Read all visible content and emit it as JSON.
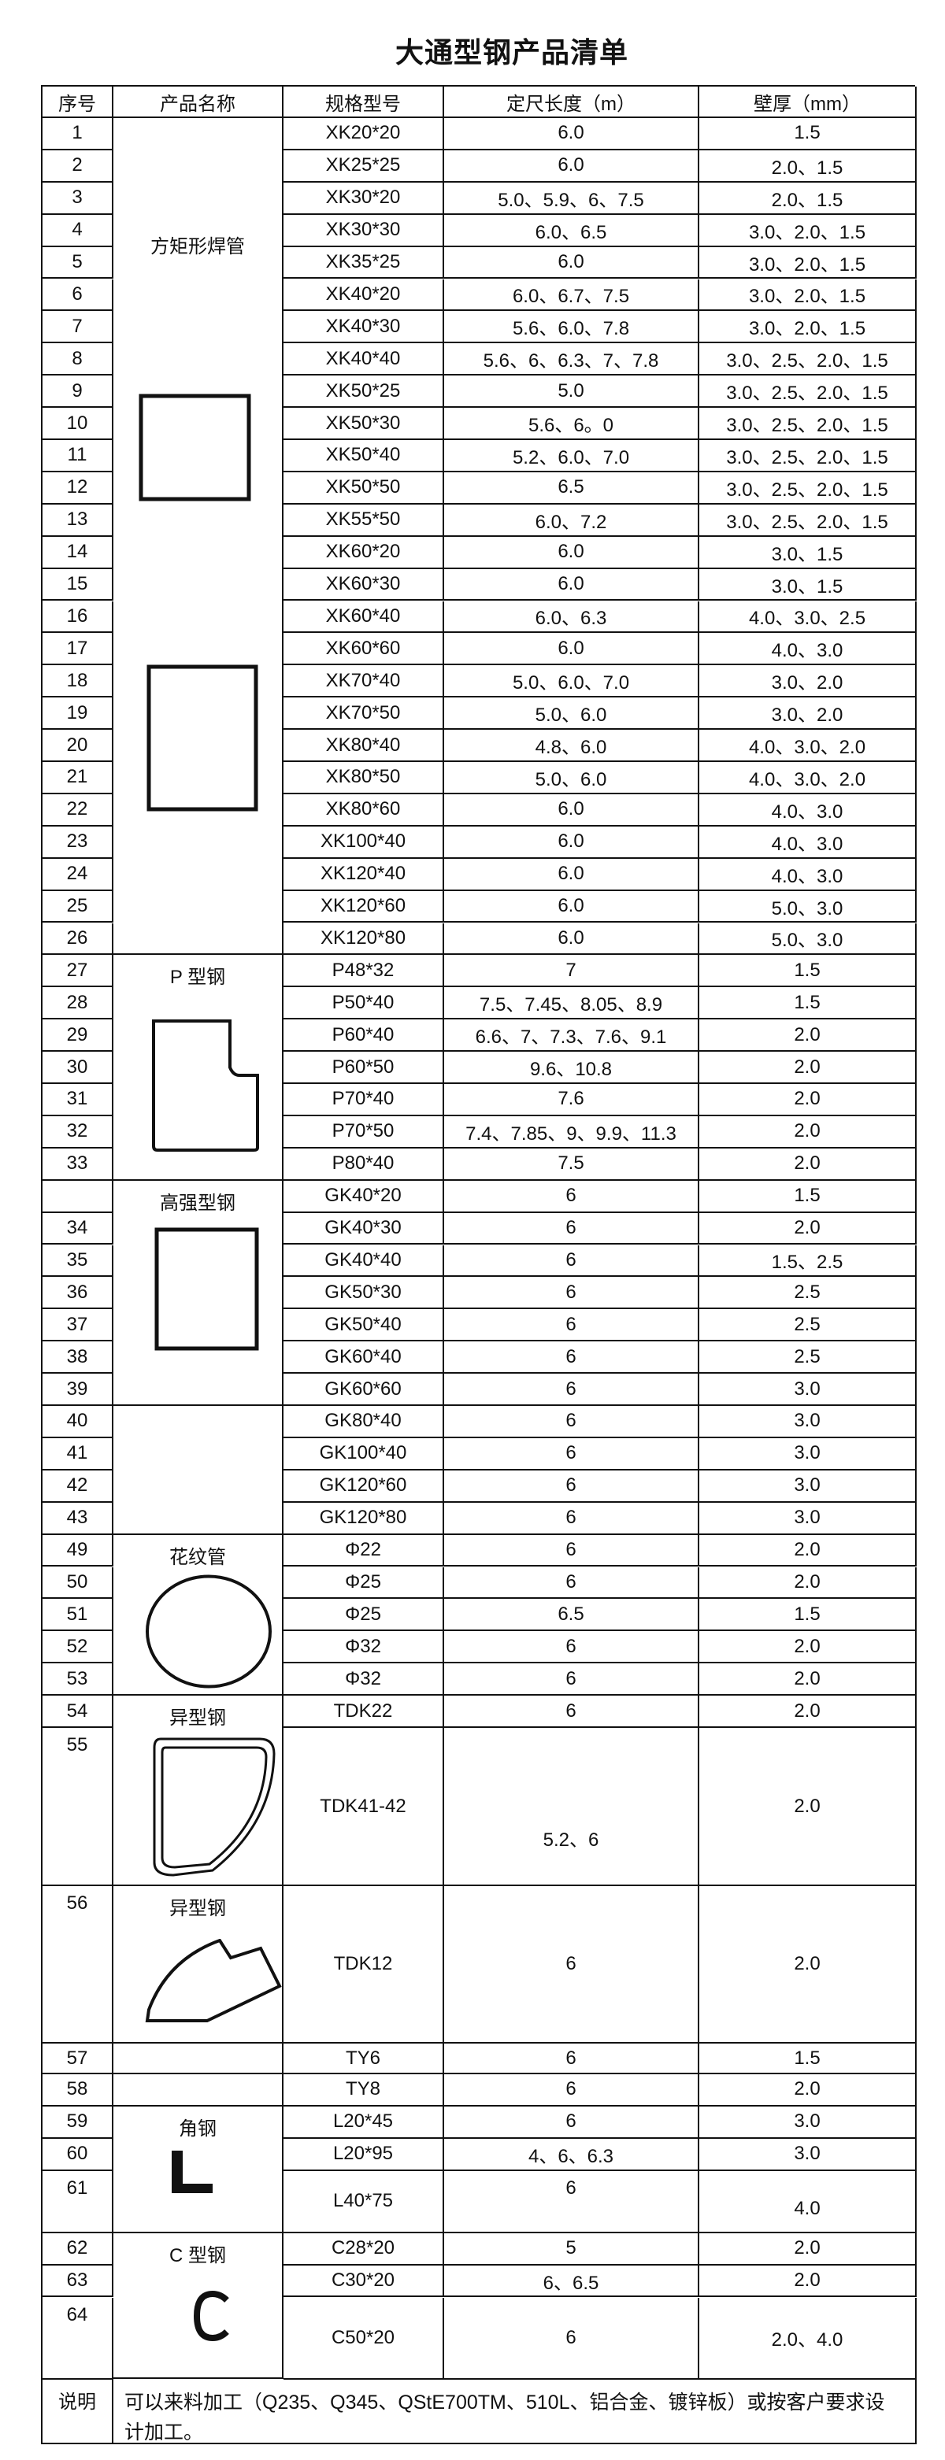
{
  "title": "大通型钢产品清单",
  "header": {
    "no": "序号",
    "name": "产品名称",
    "spec": "规格型号",
    "length": "定尺长度（m）",
    "thickness": "壁厚（mm）"
  },
  "groups": [
    {
      "label": "方矩形焊管",
      "shape": "square-tube-icon"
    },
    {
      "label": "P 型钢",
      "shape": "p-profile-icon"
    },
    {
      "label": "高强型钢",
      "shape": "rect-tube-icon"
    },
    {
      "label": ""
    },
    {
      "label": "花纹管",
      "shape": "round-tube-icon"
    },
    {
      "label": "异型钢",
      "shape": "d-profile-icon"
    },
    {
      "label": "异型钢",
      "shape": "special-profile-icon"
    },
    {
      "label": ""
    },
    {
      "label": ""
    },
    {
      "label": "角钢",
      "shape": "angle-l-icon"
    },
    {
      "label": "C 型钢",
      "shape": "channel-c-icon"
    }
  ],
  "rows": [
    {
      "no": "1",
      "spec": "XK20*20",
      "length": "6.0",
      "thickness": "1.5"
    },
    {
      "no": "2",
      "spec": "XK25*25",
      "length": "6.0",
      "thickness": "2.0、1.5"
    },
    {
      "no": "3",
      "spec": "XK30*20",
      "length": "5.0、5.9、6、7.5",
      "thickness": "2.0、1.5"
    },
    {
      "no": "4",
      "spec": "XK30*30",
      "length": "6.0、6.5",
      "thickness": "3.0、2.0、1.5"
    },
    {
      "no": "5",
      "spec": "XK35*25",
      "length": "6.0",
      "thickness": "3.0、2.0、1.5"
    },
    {
      "no": "6",
      "spec": "XK40*20",
      "length": "6.0、6.7、7.5",
      "thickness": "3.0、2.0、1.5"
    },
    {
      "no": "7",
      "spec": "XK40*30",
      "length": "5.6、6.0、7.8",
      "thickness": "3.0、2.0、1.5"
    },
    {
      "no": "8",
      "spec": "XK40*40",
      "length": "5.6、6、6.3、7、7.8",
      "thickness": "3.0、2.5、2.0、1.5"
    },
    {
      "no": "9",
      "spec": "XK50*25",
      "length": "5.0",
      "thickness": "3.0、2.5、2.0、1.5"
    },
    {
      "no": "10",
      "spec": "XK50*30",
      "length": "5.6、6。0",
      "thickness": "3.0、2.5、2.0、1.5"
    },
    {
      "no": "11",
      "spec": "XK50*40",
      "length": "5.2、6.0、7.0",
      "thickness": "3.0、2.5、2.0、1.5"
    },
    {
      "no": "12",
      "spec": "XK50*50",
      "length": "6.5",
      "thickness": "3.0、2.5、2.0、1.5"
    },
    {
      "no": "13",
      "spec": "XK55*50",
      "length": "6.0、7.2",
      "thickness": "3.0、2.5、2.0、1.5"
    },
    {
      "no": "14",
      "spec": "XK60*20",
      "length": "6.0",
      "thickness": "3.0、1.5"
    },
    {
      "no": "15",
      "spec": "XK60*30",
      "length": "6.0",
      "thickness": "3.0、1.5"
    },
    {
      "no": "16",
      "spec": "XK60*40",
      "length": "6.0、6.3",
      "thickness": "4.0、3.0、2.5"
    },
    {
      "no": "17",
      "spec": "XK60*60",
      "length": "6.0",
      "thickness": "4.0、3.0"
    },
    {
      "no": "18",
      "spec": "XK70*40",
      "length": "5.0、6.0、7.0",
      "thickness": "3.0、2.0"
    },
    {
      "no": "19",
      "spec": "XK70*50",
      "length": "5.0、6.0",
      "thickness": "3.0、2.0"
    },
    {
      "no": "20",
      "spec": "XK80*40",
      "length": "4.8、6.0",
      "thickness": "4.0、3.0、2.0"
    },
    {
      "no": "21",
      "spec": "XK80*50",
      "length": "5.0、6.0",
      "thickness": "4.0、3.0、2.0"
    },
    {
      "no": "22",
      "spec": "XK80*60",
      "length": "6.0",
      "thickness": "4.0、3.0"
    },
    {
      "no": "23",
      "spec": "XK100*40",
      "length": "6.0",
      "thickness": "4.0、3.0"
    },
    {
      "no": "24",
      "spec": "XK120*40",
      "length": "6.0",
      "thickness": "4.0、3.0"
    },
    {
      "no": "25",
      "spec": "XK120*60",
      "length": "6.0",
      "thickness": "5.0、3.0"
    },
    {
      "no": "26",
      "spec": "XK120*80",
      "length": "6.0",
      "thickness": "5.0、3.0"
    },
    {
      "no": "27",
      "spec": "P48*32",
      "length": "7",
      "thickness": "1.5"
    },
    {
      "no": "28",
      "spec": "P50*40",
      "length": "7.5、7.45、8.05、8.9",
      "thickness": "1.5"
    },
    {
      "no": "29",
      "spec": "P60*40",
      "length": "6.6、7、7.3、7.6、9.1",
      "thickness": "2.0"
    },
    {
      "no": "30",
      "spec": "P60*50",
      "length": "9.6、10.8",
      "thickness": "2.0"
    },
    {
      "no": "31",
      "spec": "P70*40",
      "length": "7.6",
      "thickness": "2.0"
    },
    {
      "no": "32",
      "spec": "P70*50",
      "length": "7.4、7.85、9、9.9、11.3",
      "thickness": "2.0"
    },
    {
      "no": "33",
      "spec": "P80*40",
      "length": "7.5",
      "thickness": "2.0"
    },
    {
      "no": "",
      "spec": "GK40*20",
      "length": "6",
      "thickness": "1.5"
    },
    {
      "no": "34",
      "spec": "GK40*30",
      "length": "6",
      "thickness": "2.0"
    },
    {
      "no": "35",
      "spec": "GK40*40",
      "length": "6",
      "thickness": "1.5、2.5"
    },
    {
      "no": "36",
      "spec": "GK50*30",
      "length": "6",
      "thickness": "2.5"
    },
    {
      "no": "37",
      "spec": "GK50*40",
      "length": "6",
      "thickness": "2.5"
    },
    {
      "no": "38",
      "spec": "GK60*40",
      "length": "6",
      "thickness": "2.5"
    },
    {
      "no": "39",
      "spec": "GK60*60",
      "length": "6",
      "thickness": "3.0"
    },
    {
      "no": "40",
      "spec": "GK80*40",
      "length": "6",
      "thickness": "3.0"
    },
    {
      "no": "41",
      "spec": "GK100*40",
      "length": "6",
      "thickness": "3.0"
    },
    {
      "no": "42",
      "spec": "GK120*60",
      "length": "6",
      "thickness": "3.0"
    },
    {
      "no": "43",
      "spec": "GK120*80",
      "length": "6",
      "thickness": "3.0"
    },
    {
      "no": "49",
      "spec": "Φ22",
      "length": "6",
      "thickness": "2.0"
    },
    {
      "no": "50",
      "spec": "Φ25",
      "length": "6",
      "thickness": "2.0"
    },
    {
      "no": "51",
      "spec": "Φ25",
      "length": "6.5",
      "thickness": "1.5"
    },
    {
      "no": "52",
      "spec": "Φ32",
      "length": "6",
      "thickness": "2.0"
    },
    {
      "no": "53",
      "spec": "Φ32",
      "length": "6",
      "thickness": "2.0"
    },
    {
      "no": "54",
      "spec": "TDK22",
      "length": "6",
      "thickness": "2.0"
    },
    {
      "no": "55",
      "spec": "TDK41-42",
      "length": "5.2、6",
      "thickness": "2.0"
    },
    {
      "no": "56",
      "spec": "TDK12",
      "length": "6",
      "thickness": "2.0"
    },
    {
      "no": "57",
      "spec": "TY6",
      "length": "6",
      "thickness": "1.5"
    },
    {
      "no": "58",
      "spec": "TY8",
      "length": "6",
      "thickness": "2.0"
    },
    {
      "no": "59",
      "spec": "L20*45",
      "length": "6",
      "thickness": "3.0"
    },
    {
      "no": "60",
      "spec": "L20*95",
      "length": "4、6、6.3",
      "thickness": "3.0"
    },
    {
      "no": "61",
      "spec": "L40*75",
      "length": "6",
      "thickness": "4.0"
    },
    {
      "no": "62",
      "spec": "C28*20",
      "length": "5",
      "thickness": "2.0"
    },
    {
      "no": "63",
      "spec": "C30*20",
      "length": "6、6.5",
      "thickness": "2.0"
    },
    {
      "no": "64",
      "spec": "C50*20",
      "length": "6",
      "thickness": "2.0、4.0"
    }
  ],
  "note": {
    "label": "说明",
    "text": "可以来料加工（Q235、Q345、QStE700TM、510L、铝合金、镀锌板）或按客户要求设计加工。"
  },
  "line_color": "#111111"
}
